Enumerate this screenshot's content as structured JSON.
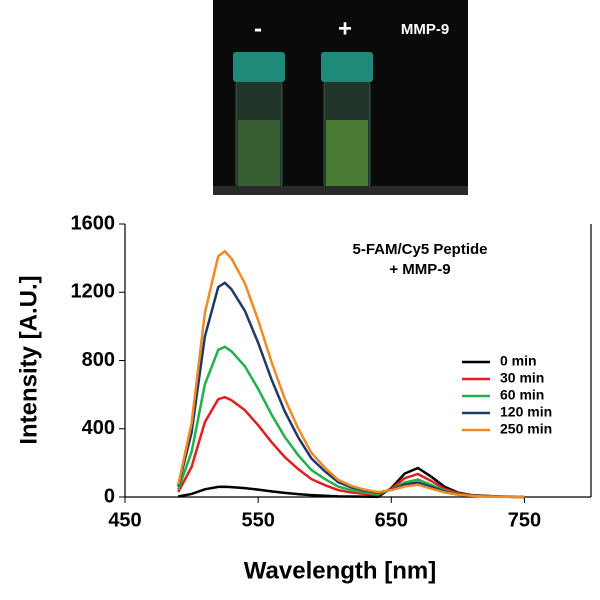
{
  "photo": {
    "labels": [
      "-",
      "+",
      "MMP-9"
    ]
  },
  "chart_data": {
    "type": "line",
    "xlabel": "Wavelength [nm]",
    "ylabel": "Intensity [A.U.]",
    "annotation": [
      "5-FAM/Cy5 Peptide",
      "+ MMP-9"
    ],
    "x": [
      490,
      500,
      510,
      520,
      525,
      530,
      540,
      550,
      560,
      570,
      580,
      590,
      600,
      610,
      620,
      630,
      640,
      650,
      660,
      670,
      680,
      690,
      700,
      710,
      720,
      730,
      740,
      750
    ],
    "xlim": [
      450,
      800
    ],
    "xticks": [
      450,
      550,
      650,
      750
    ],
    "ylim": [
      0,
      1600
    ],
    "yticks": [
      0,
      400,
      800,
      1200,
      1600
    ],
    "legend": "right",
    "series": [
      {
        "name": "0 min",
        "color": "#000000",
        "values": [
          3,
          18,
          45,
          59,
          60,
          58,
          52,
          43,
          33,
          24,
          17,
          11,
          7,
          4,
          3,
          2,
          1,
          52,
          137,
          170,
          119,
          60,
          26,
          12,
          7,
          3,
          2,
          0
        ]
      },
      {
        "name": "30 min",
        "color": "#e02020",
        "values": [
          29,
          176,
          439,
          573,
          585,
          567,
          509,
          421,
          322,
          234,
          164,
          105,
          70,
          41,
          26,
          18,
          12,
          48,
          110,
          135,
          94,
          48,
          22,
          10,
          6,
          3,
          1,
          0
        ]
      },
      {
        "name": "60 min",
        "color": "#22b04a",
        "values": [
          44,
          264,
          660,
          862,
          880,
          854,
          766,
          634,
          484,
          352,
          246,
          158,
          106,
          62,
          40,
          26,
          18,
          42,
          85,
          102,
          71,
          37,
          17,
          9,
          5,
          2,
          1,
          0
        ]
      },
      {
        "name": "120 min",
        "color": "#1f3a64",
        "values": [
          63,
          377,
          941,
          1230,
          1255,
          1217,
          1092,
          904,
          690,
          502,
          351,
          226,
          151,
          88,
          56,
          38,
          25,
          42,
          73,
          85,
          59,
          31,
          15,
          8,
          4,
          2,
          1,
          0
        ]
      },
      {
        "name": "250 min",
        "color": "#f08a24",
        "values": [
          72,
          432,
          1080,
          1411,
          1440,
          1397,
          1253,
          1037,
          792,
          576,
          403,
          259,
          173,
          101,
          65,
          43,
          29,
          40,
          62,
          72,
          49,
          27,
          13,
          7,
          3,
          1,
          1,
          0
        ]
      }
    ]
  }
}
